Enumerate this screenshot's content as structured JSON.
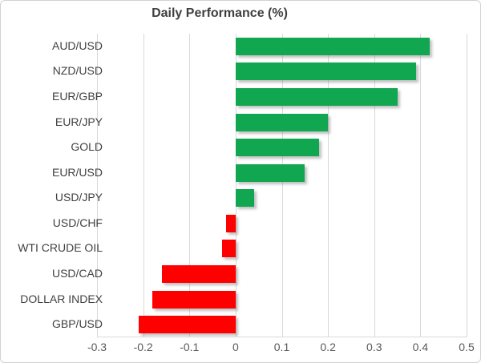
{
  "chart_data": {
    "type": "bar",
    "orientation": "horizontal",
    "title": "Daily Performance (%)",
    "xlabel": "",
    "ylabel": "",
    "categories": [
      "AUD/USD",
      "NZD/USD",
      "EUR/GBP",
      "EUR/JPY",
      "GOLD",
      "EUR/USD",
      "USD/JPY",
      "USD/CHF",
      "WTI CRUDE OIL",
      "USD/CAD",
      "DOLLAR INDEX",
      "GBP/USD"
    ],
    "values": [
      0.42,
      0.39,
      0.35,
      0.2,
      0.18,
      0.15,
      0.04,
      -0.02,
      -0.03,
      -0.16,
      -0.18,
      -0.21
    ],
    "xlim": [
      -0.3,
      0.5
    ],
    "xticks": [
      -0.3,
      -0.2,
      -0.1,
      0,
      0.1,
      0.2,
      0.3,
      0.4,
      0.5
    ],
    "xtick_labels": [
      "-0.3",
      "-0.2",
      "-0.1",
      "0",
      "0.1",
      "0.2",
      "0.3",
      "0.4",
      "0.5"
    ],
    "grid": "vertical-only",
    "legend": "none",
    "colors": {
      "positive": "#11a650",
      "negative": "#ff0000",
      "gridline": "#d9d9d9",
      "title_text": "#3f3f3f",
      "category_text": "#404040",
      "tick_text": "#595959",
      "chart_border": "#d2d2d2",
      "background": "#ffffff"
    }
  }
}
